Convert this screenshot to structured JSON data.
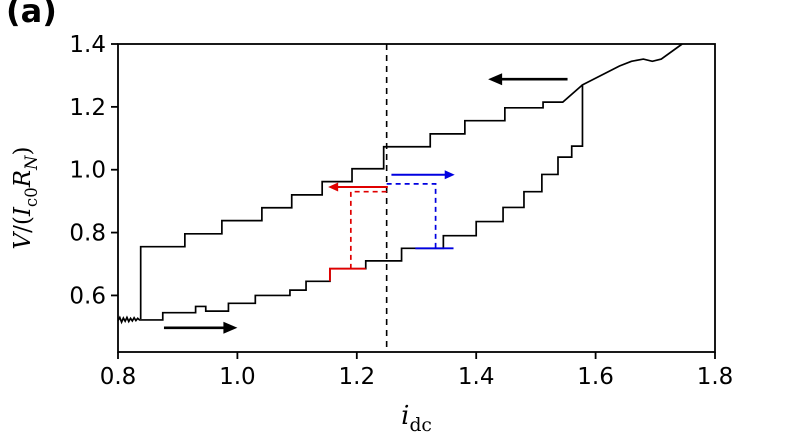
{
  "figure": {
    "background": "#ffffff"
  },
  "chart_data": {
    "type": "line",
    "panel_label": "(a)",
    "title": "",
    "xlabel": {
      "text": "i_dc",
      "parts": [
        {
          "text": "i",
          "italic": true
        },
        {
          "text": "dc",
          "sub": true
        }
      ]
    },
    "ylabel": {
      "text": "V/(I_c0 R_N)",
      "parts": [
        {
          "text": "V",
          "italic": true
        },
        {
          "text": "/("
        },
        {
          "text": "I",
          "italic": true
        },
        {
          "text": "c0",
          "sub": true
        },
        {
          "text": "R",
          "italic": true
        },
        {
          "text": "N",
          "sub": true,
          "italic": true
        },
        {
          "text": ")"
        }
      ]
    },
    "xlim": [
      0.8,
      1.8
    ],
    "ylim": [
      0.42,
      1.4
    ],
    "grid": false,
    "legend": "none",
    "xticks": {
      "values": [
        0.8,
        1.0,
        1.2,
        1.4,
        1.6,
        1.8
      ],
      "labels": [
        "0.8",
        "1.0",
        "1.2",
        "1.4",
        "1.6",
        "1.8"
      ]
    },
    "yticks": {
      "values": [
        0.6,
        0.8,
        1.0,
        1.2,
        1.4
      ],
      "labels": [
        "0.6",
        "0.8",
        "1.0",
        "1.2",
        "1.4"
      ]
    },
    "vline": {
      "x": 1.25,
      "color": "#000000",
      "style": "dashed"
    },
    "colors": {
      "curve": "#000000",
      "red_branch": "#e00000",
      "blue_branch": "#0000e0"
    },
    "series": [
      {
        "name": "forward-sweep-curve",
        "color": "#000000",
        "style": "solid",
        "width": 1.7,
        "points": [
          [
            0.8,
            0.52
          ],
          [
            0.803,
            0.53
          ],
          [
            0.806,
            0.515
          ],
          [
            0.809,
            0.528
          ],
          [
            0.812,
            0.518
          ],
          [
            0.815,
            0.53
          ],
          [
            0.818,
            0.517
          ],
          [
            0.821,
            0.527
          ],
          [
            0.824,
            0.519
          ],
          [
            0.827,
            0.529
          ],
          [
            0.83,
            0.52
          ],
          [
            0.833,
            0.527
          ],
          [
            0.836,
            0.522
          ],
          [
            0.875,
            0.522
          ],
          [
            0.875,
            0.545
          ],
          [
            0.93,
            0.545
          ],
          [
            0.93,
            0.565
          ],
          [
            0.947,
            0.565
          ],
          [
            0.947,
            0.55
          ],
          [
            0.985,
            0.55
          ],
          [
            0.985,
            0.575
          ],
          [
            1.03,
            0.575
          ],
          [
            1.03,
            0.6
          ],
          [
            1.088,
            0.6
          ],
          [
            1.088,
            0.617
          ],
          [
            1.115,
            0.617
          ],
          [
            1.115,
            0.645
          ],
          [
            1.155,
            0.645
          ],
          [
            1.155,
            0.685
          ],
          [
            1.215,
            0.685
          ],
          [
            1.215,
            0.71
          ],
          [
            1.275,
            0.71
          ],
          [
            1.275,
            0.75
          ],
          [
            1.345,
            0.75
          ],
          [
            1.345,
            0.79
          ],
          [
            1.4,
            0.79
          ],
          [
            1.4,
            0.835
          ],
          [
            1.445,
            0.835
          ],
          [
            1.445,
            0.88
          ],
          [
            1.48,
            0.88
          ],
          [
            1.48,
            0.93
          ],
          [
            1.51,
            0.93
          ],
          [
            1.51,
            0.985
          ],
          [
            1.537,
            0.985
          ],
          [
            1.537,
            1.04
          ],
          [
            1.56,
            1.04
          ],
          [
            1.56,
            1.075
          ],
          [
            1.578,
            1.075
          ],
          [
            1.578,
            1.27
          ],
          [
            1.64,
            1.33
          ],
          [
            1.66,
            1.345
          ],
          [
            1.68,
            1.352
          ],
          [
            1.695,
            1.345
          ],
          [
            1.71,
            1.352
          ],
          [
            1.745,
            1.4
          ]
        ]
      },
      {
        "name": "backward-sweep-curve",
        "color": "#000000",
        "style": "solid",
        "width": 1.7,
        "points": [
          [
            0.838,
            0.525
          ],
          [
            0.838,
            0.755
          ],
          [
            0.912,
            0.755
          ],
          [
            0.912,
            0.796
          ],
          [
            0.974,
            0.796
          ],
          [
            0.974,
            0.838
          ],
          [
            1.041,
            0.838
          ],
          [
            1.041,
            0.879
          ],
          [
            1.091,
            0.879
          ],
          [
            1.091,
            0.92
          ],
          [
            1.142,
            0.92
          ],
          [
            1.142,
            0.962
          ],
          [
            1.192,
            0.962
          ],
          [
            1.192,
            1.003
          ],
          [
            1.245,
            1.003
          ],
          [
            1.245,
            1.073
          ],
          [
            1.323,
            1.073
          ],
          [
            1.323,
            1.114
          ],
          [
            1.381,
            1.114
          ],
          [
            1.381,
            1.156
          ],
          [
            1.448,
            1.156
          ],
          [
            1.448,
            1.197
          ],
          [
            1.512,
            1.197
          ],
          [
            1.512,
            1.215
          ],
          [
            1.545,
            1.215
          ],
          [
            1.578,
            1.27
          ]
        ]
      },
      {
        "name": "red-transition-dashed-path",
        "color": "#e00000",
        "style": "dashed",
        "width": 1.7,
        "points": [
          [
            1.25,
            0.93
          ],
          [
            1.19,
            0.93
          ],
          [
            1.19,
            0.685
          ]
        ]
      },
      {
        "name": "red-step-segment",
        "color": "#e00000",
        "style": "solid",
        "width": 1.9,
        "points": [
          [
            1.155,
            0.645
          ],
          [
            1.155,
            0.685
          ],
          [
            1.215,
            0.685
          ]
        ]
      },
      {
        "name": "blue-transition-dashed-path",
        "color": "#0000e0",
        "style": "dashed",
        "width": 1.7,
        "points": [
          [
            1.25,
            0.955
          ],
          [
            1.332,
            0.955
          ],
          [
            1.332,
            0.75
          ]
        ]
      },
      {
        "name": "blue-step-segment",
        "color": "#0000e0",
        "style": "solid",
        "width": 1.9,
        "points": [
          [
            1.298,
            0.75
          ],
          [
            1.362,
            0.75
          ]
        ]
      }
    ],
    "arrows": [
      {
        "name": "backward-sweep-direction-arrow",
        "color": "#000000",
        "from": [
          1.553,
          1.288
        ],
        "to": [
          1.42,
          1.288
        ]
      },
      {
        "name": "forward-sweep-direction-arrow",
        "color": "#000000",
        "from": [
          0.877,
          0.497
        ],
        "to": [
          1.0,
          0.497
        ]
      },
      {
        "name": "red-sweep-left-arrow",
        "color": "#e00000",
        "from": [
          1.252,
          0.945
        ],
        "to": [
          1.152,
          0.945
        ]
      },
      {
        "name": "blue-sweep-right-arrow",
        "color": "#0000e0",
        "from": [
          1.258,
          0.984
        ],
        "to": [
          1.364,
          0.984
        ]
      }
    ]
  }
}
